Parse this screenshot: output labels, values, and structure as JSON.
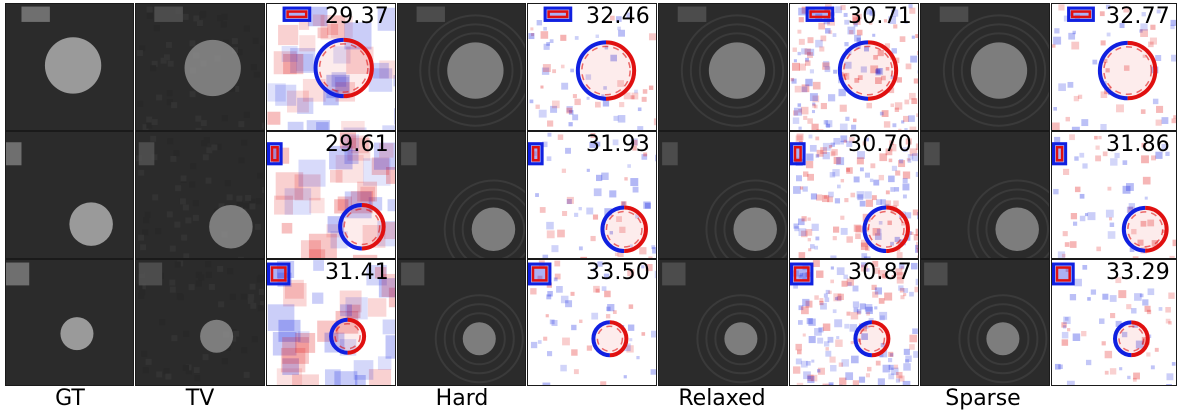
{
  "columns": [
    {
      "key": "gt",
      "kind": "image",
      "label": "GT"
    },
    {
      "key": "tv",
      "kind": "image",
      "label": "TV"
    },
    {
      "key": "tv_err",
      "kind": "error",
      "label": ""
    },
    {
      "key": "hard",
      "kind": "image",
      "label": "Hard"
    },
    {
      "key": "hard_err",
      "kind": "error",
      "label": ""
    },
    {
      "key": "relaxed",
      "kind": "image",
      "label": "Relaxed"
    },
    {
      "key": "relaxed_err",
      "kind": "error",
      "label": ""
    },
    {
      "key": "sparse",
      "kind": "image",
      "label": "Sparse"
    },
    {
      "key": "sparse_err",
      "kind": "error",
      "label": ""
    }
  ],
  "rows": [
    {
      "psnr": {
        "tv_err": "29.37",
        "hard_err": "32.46",
        "relaxed_err": "30.71",
        "sparse_err": "32.77"
      }
    },
    {
      "psnr": {
        "tv_err": "29.61",
        "hard_err": "31.93",
        "relaxed_err": "30.70",
        "sparse_err": "31.86"
      }
    },
    {
      "psnr": {
        "tv_err": "31.41",
        "hard_err": "33.50",
        "relaxed_err": "30.87",
        "sparse_err": "33.29"
      }
    }
  ],
  "colors": {
    "background_dark": "#2b2b2b",
    "object_gray": "#9a9a9a",
    "error_positive": "#e01010",
    "error_negative": "#1020e0",
    "error_background": "#ffffff"
  }
}
